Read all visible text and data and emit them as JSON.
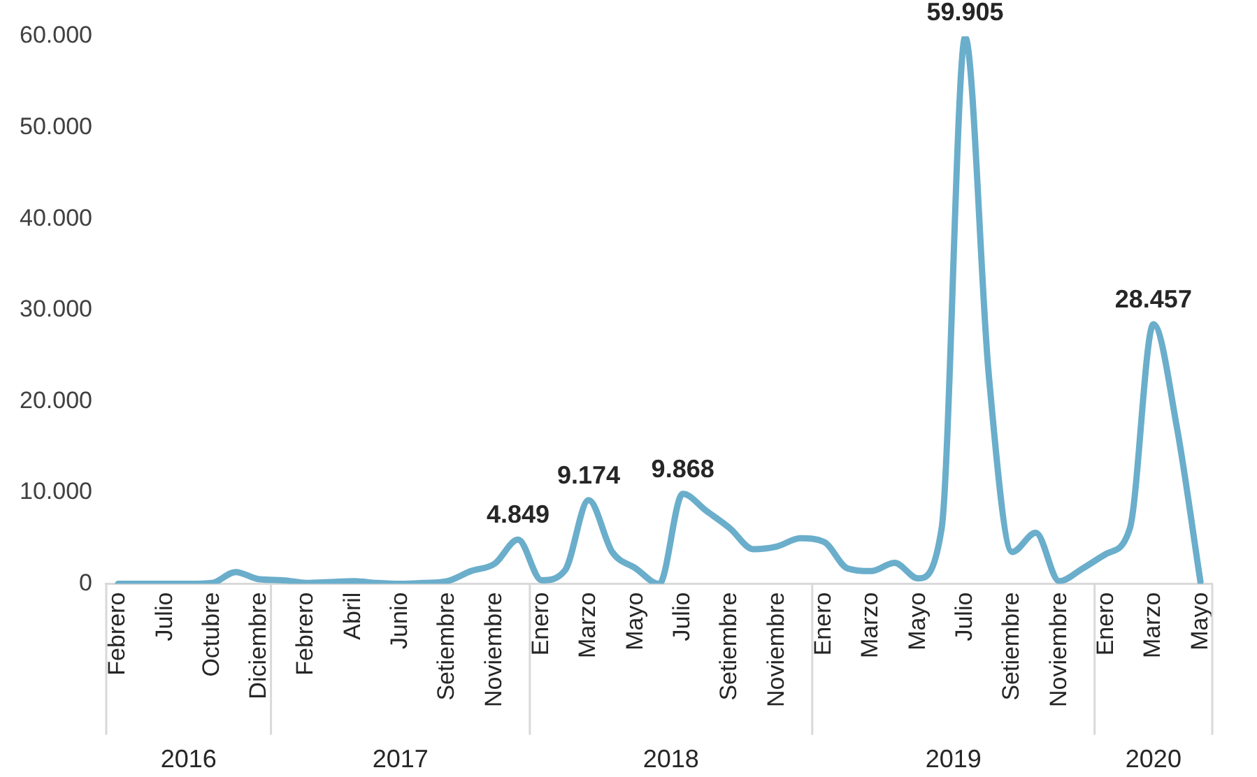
{
  "chart_data": {
    "type": "line",
    "categories": [
      "Febrero",
      null,
      "Julio",
      null,
      "Octubre",
      null,
      "Diciembre",
      null,
      "Febrero",
      null,
      "Abril",
      null,
      "Junio",
      null,
      "Setiembre",
      null,
      "Noviembre",
      null,
      "Enero",
      null,
      "Marzo",
      null,
      "Mayo",
      null,
      "Julio",
      null,
      "Setiembre",
      null,
      "Noviembre",
      null,
      "Enero",
      null,
      "Marzo",
      null,
      "Mayo",
      null,
      "Julio",
      null,
      "Setiembre",
      null,
      "Noviembre",
      null,
      "Enero",
      null,
      "Marzo",
      null,
      "Mayo"
    ],
    "series": [
      {
        "color": "#6aaecb",
        "values": [
          0,
          0,
          0,
          0,
          100,
          1300,
          500,
          400,
          100,
          200,
          300,
          100,
          0,
          100,
          300,
          1400,
          2200,
          4849,
          400,
          1500,
          9174,
          3500,
          1700,
          0,
          9868,
          8000,
          6100,
          3800,
          4100,
          5000,
          4600,
          1700,
          1400,
          2300,
          600,
          6100,
          59905,
          23000,
          3500,
          5600,
          300,
          1700,
          3300,
          6100,
          28457,
          17100,
          200
        ],
        "value_labels": [
          null,
          null,
          null,
          null,
          null,
          null,
          null,
          null,
          null,
          null,
          null,
          null,
          null,
          null,
          null,
          null,
          null,
          "4.849",
          null,
          null,
          "9.174",
          null,
          null,
          null,
          "9.868",
          null,
          null,
          null,
          null,
          null,
          null,
          null,
          null,
          null,
          null,
          null,
          "59.905",
          null,
          null,
          null,
          null,
          null,
          null,
          null,
          "28.457",
          null,
          null
        ]
      }
    ],
    "ylim": [
      0,
      60000
    ],
    "yticks": [
      0,
      {
        "value": 10000,
        "label": "10.000"
      },
      {
        "value": 20000,
        "label": "20.000"
      },
      {
        "value": 30000,
        "label": "30.000"
      },
      {
        "value": 40000,
        "label": "40.000"
      },
      {
        "value": 50000,
        "label": "50.000"
      },
      {
        "value": 60000,
        "label": "60.000"
      }
    ],
    "annotations": [
      "2016",
      "2017",
      "2018",
      "2019",
      "2020"
    ],
    "grid": false,
    "legend": false,
    "marker": "none",
    "line_style": "solid"
  }
}
